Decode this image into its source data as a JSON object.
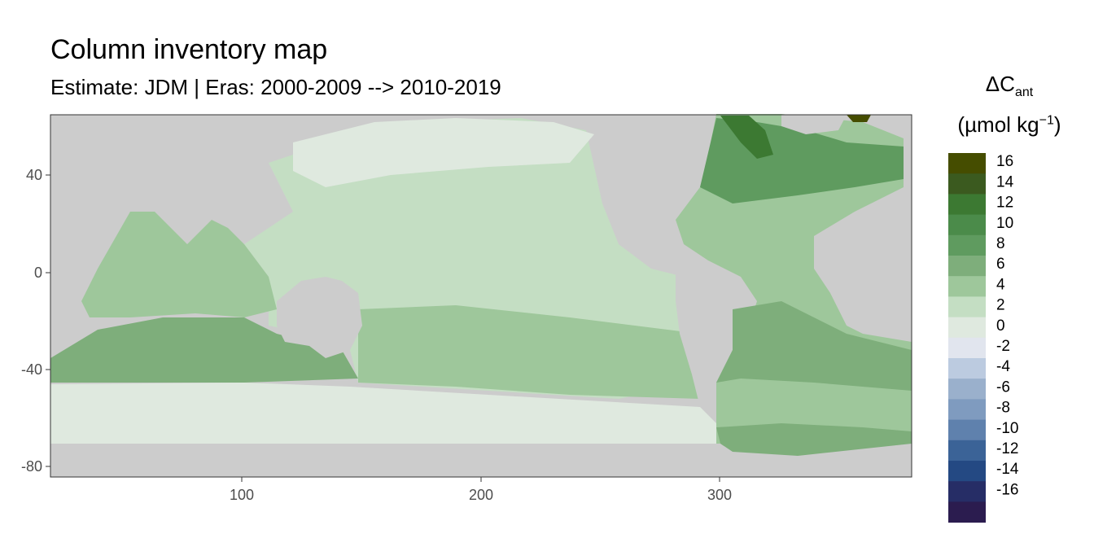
{
  "title": "Column inventory map",
  "subtitle": "Estimate: JDM  | Eras: 2000-2009 --> 2010-2019",
  "legend": {
    "title_main": "ΔC",
    "title_sub": "ant",
    "unit_open": "(µmol kg",
    "unit_sup": "−1",
    "unit_close": ")",
    "bins": [
      {
        "label": "16",
        "color": "#454d00"
      },
      {
        "label": "14",
        "color": "#3b5a1f"
      },
      {
        "label": "12",
        "color": "#3c7932"
      },
      {
        "label": "10",
        "color": "#4b8b4a"
      },
      {
        "label": "8",
        "color": "#5f9b5f"
      },
      {
        "label": "6",
        "color": "#7eae7b"
      },
      {
        "label": "4",
        "color": "#9ec79b"
      },
      {
        "label": "2",
        "color": "#c4dec3"
      },
      {
        "label": "0",
        "color": "#dfe9df"
      },
      {
        "label": "-2",
        "color": "#e1e5ee"
      },
      {
        "label": "-4",
        "color": "#bccbe0"
      },
      {
        "label": "-6",
        "color": "#9ab0cc"
      },
      {
        "label": "-8",
        "color": "#7f9bbf"
      },
      {
        "label": "-10",
        "color": "#5f81ad"
      },
      {
        "label": "-12",
        "color": "#3b6397"
      },
      {
        "label": "-14",
        "color": "#244983"
      },
      {
        "label": "-16",
        "color": "#262d66"
      },
      {
        "label": "",
        "color": "#2b1c4f"
      }
    ]
  },
  "axes": {
    "x_ticks": [
      "100",
      "200",
      "300"
    ],
    "y_ticks": [
      "40",
      "0",
      "-40",
      "-80"
    ]
  },
  "map": {
    "land_color": "#cccccc",
    "panel_border": "#333333"
  }
}
